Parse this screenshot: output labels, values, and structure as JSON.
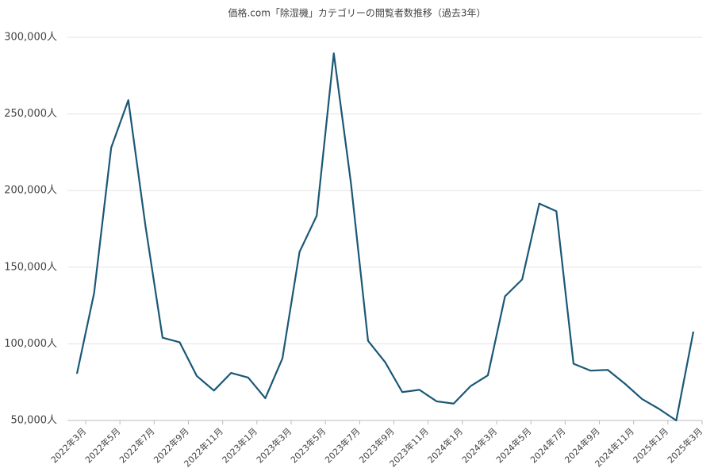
{
  "chart_data": {
    "type": "line",
    "title": "価格.com「除湿機」カテゴリーの閲覧者数推移（過去3年）",
    "categories": [
      "2022年3月",
      null,
      "2022年5月",
      null,
      "2022年7月",
      null,
      "2022年9月",
      null,
      "2022年11月",
      null,
      "2023年1月",
      null,
      "2023年3月",
      null,
      "2023年5月",
      null,
      "2023年7月",
      null,
      "2023年9月",
      null,
      "2023年11月",
      null,
      "2024年1月",
      null,
      "2024年3月",
      null,
      "2024年5月",
      null,
      "2024年7月",
      null,
      "2024年9月",
      null,
      "2024年11月",
      null,
      "2025年1月",
      null,
      "2025年3月"
    ],
    "series": [
      {
        "color": "#1b5876",
        "values": [
          80500,
          133000,
          228000,
          259000,
          177000,
          104000,
          101000,
          79000,
          69500,
          81000,
          78000,
          64500,
          90500,
          160000,
          183500,
          289500,
          205000,
          102000,
          88000,
          68500,
          70000,
          62500,
          61000,
          72500,
          79500,
          131000,
          142000,
          191500,
          186500,
          87000,
          82500,
          83000,
          74000,
          64000,
          57500,
          50000,
          108000
        ]
      }
    ],
    "ylim": [
      50000,
      300000
    ],
    "yticks": [
      {
        "value": 50000,
        "label": "50,000人"
      },
      {
        "value": 100000,
        "label": "100,000人"
      },
      {
        "value": 150000,
        "label": "150,000人"
      },
      {
        "value": 200000,
        "label": "200,000人"
      },
      {
        "value": 250000,
        "label": "250,000人"
      },
      {
        "value": 300000,
        "label": "300,000人"
      }
    ],
    "grid": true
  }
}
